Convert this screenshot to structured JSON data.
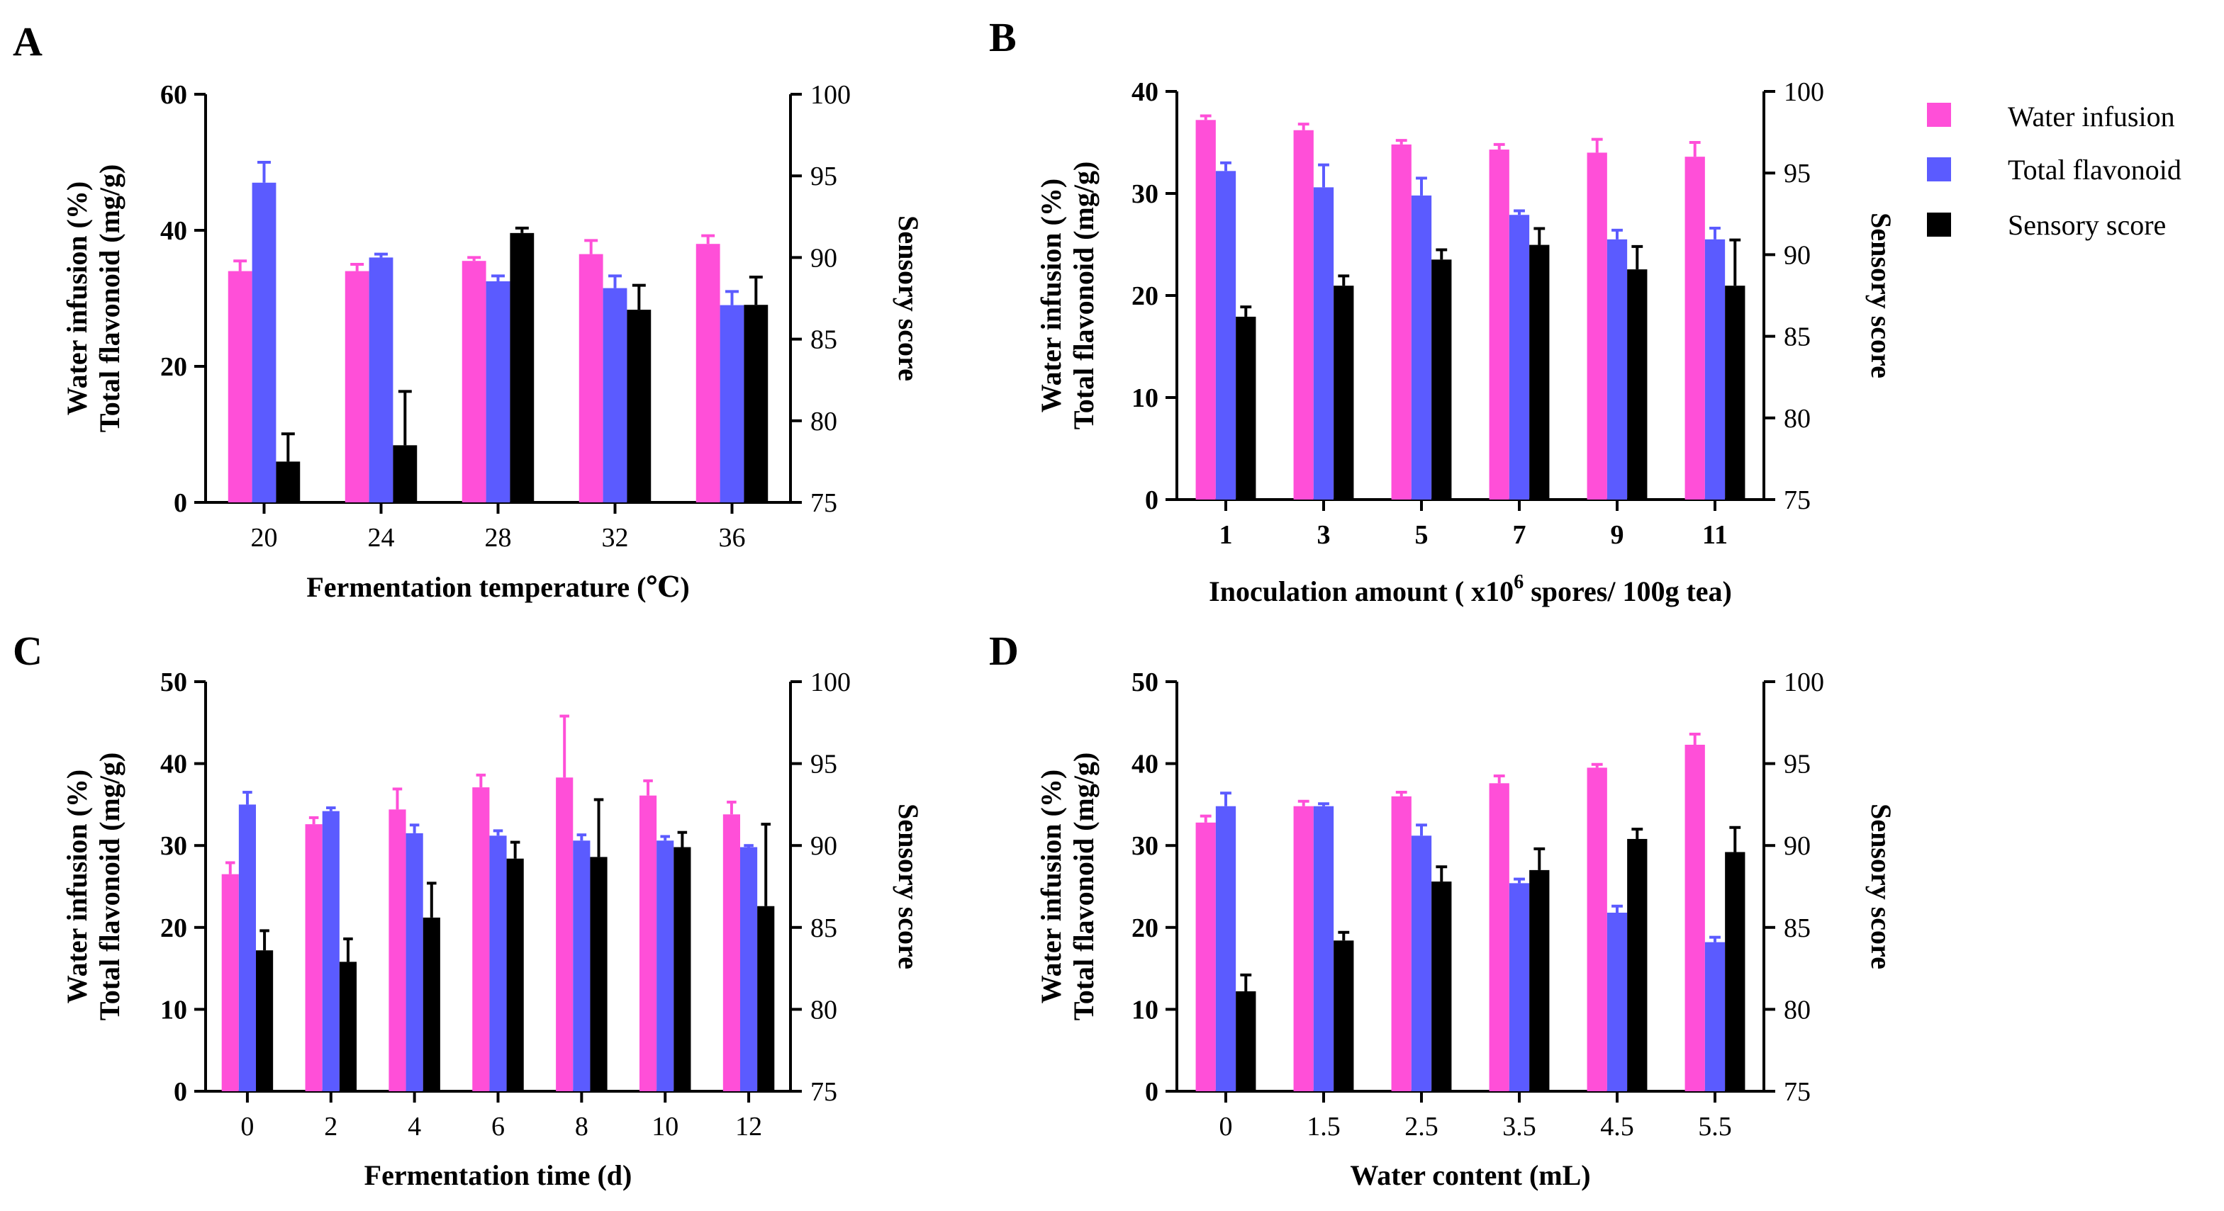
{
  "colors": {
    "water_infusion": "#ff4fd8",
    "total_flavonoid": "#5b5bff",
    "sensory_score": "#000000"
  },
  "legend": {
    "items": [
      {
        "label": "Water infusion",
        "color_key": "water_infusion"
      },
      {
        "label": "Total flavonoid",
        "color_key": "total_flavonoid"
      },
      {
        "label": "Sensory score",
        "color_key": "sensory_score"
      }
    ]
  },
  "chart_data": [
    {
      "panel": "A",
      "type": "bar",
      "xlabel": "Fermentation temperature (℃)",
      "xlabel_sup": "",
      "xlabel_after": "",
      "ylabel_left_1": "Water infusion (%)",
      "ylabel_left_2": "Total flavonoid (mg/g)",
      "ylabel_right": "Sensory score",
      "ylim_left": [
        0,
        60
      ],
      "yticks_left": [
        0,
        20,
        40,
        60
      ],
      "ylim_right": [
        75,
        100
      ],
      "yticks_right": [
        75,
        80,
        85,
        90,
        95,
        100
      ],
      "categories": [
        "20",
        "24",
        "28",
        "32",
        "36"
      ],
      "series": [
        {
          "name": "Water infusion",
          "axis": "left",
          "values": [
            34,
            34,
            35.5,
            36.5,
            38
          ],
          "errors": [
            1.5,
            1,
            0.5,
            2,
            1.2
          ]
        },
        {
          "name": "Total flavonoid",
          "axis": "left",
          "values": [
            47,
            36,
            32.5,
            31.5,
            29
          ],
          "errors": [
            3,
            0.5,
            0.8,
            1.8,
            2
          ]
        },
        {
          "name": "Sensory score",
          "axis": "right",
          "values": [
            77.5,
            78.5,
            91.5,
            86.8,
            87.1
          ],
          "errors": [
            1.7,
            3.3,
            0.3,
            1.5,
            1.7
          ]
        }
      ]
    },
    {
      "panel": "B",
      "type": "bar",
      "xlabel": "Inoculation amount (  x10",
      "xlabel_sup": "6",
      "xlabel_after": " spores/ 100g tea)",
      "ylabel_left_1": "Water infusion (%)",
      "ylabel_left_2": "Total flavonoid (mg/g)",
      "ylabel_right": "Sensory score",
      "ylim_left": [
        0,
        40
      ],
      "yticks_left": [
        0,
        10,
        20,
        30,
        40
      ],
      "ylim_right": [
        75,
        100
      ],
      "yticks_right": [
        75,
        80,
        85,
        90,
        95,
        100
      ],
      "categories": [
        "1",
        "3",
        "5",
        "7",
        "9",
        "11"
      ],
      "series": [
        {
          "name": "Water infusion",
          "axis": "left",
          "values": [
            37.2,
            36.2,
            34.8,
            34.3,
            34,
            33.6
          ],
          "errors": [
            0.4,
            0.6,
            0.4,
            0.5,
            1.3,
            1.4
          ]
        },
        {
          "name": "Total flavonoid",
          "axis": "left",
          "values": [
            32.2,
            30.6,
            29.8,
            27.9,
            25.5,
            25.5
          ],
          "errors": [
            0.8,
            2.2,
            1.7,
            0.4,
            0.9,
            1.1
          ]
        },
        {
          "name": "Sensory score",
          "axis": "right",
          "values": [
            86.2,
            88.1,
            89.7,
            90.6,
            89.1,
            88.1
          ],
          "errors": [
            0.6,
            0.6,
            0.6,
            1.0,
            1.4,
            2.8
          ]
        }
      ]
    },
    {
      "panel": "C",
      "type": "bar",
      "xlabel": "Fermentation time (d)",
      "xlabel_sup": "",
      "xlabel_after": "",
      "ylabel_left_1": "Water infusion (%)",
      "ylabel_left_2": "Total flavonoid (mg/g)",
      "ylabel_right": "Sensory score",
      "ylim_left": [
        0,
        50
      ],
      "yticks_left": [
        0,
        10,
        20,
        30,
        40,
        50
      ],
      "ylim_right": [
        75,
        100
      ],
      "yticks_right": [
        75,
        80,
        85,
        90,
        95,
        100
      ],
      "categories": [
        "0",
        "2",
        "4",
        "6",
        "8",
        "10",
        "12"
      ],
      "series": [
        {
          "name": "Water infusion",
          "axis": "left",
          "values": [
            26.5,
            32.6,
            34.4,
            37.1,
            38.3,
            36.1,
            33.8
          ],
          "errors": [
            1.4,
            0.8,
            2.5,
            1.5,
            7.5,
            1.8,
            1.5
          ]
        },
        {
          "name": "Total flavonoid",
          "axis": "left",
          "values": [
            35,
            34.2,
            31.5,
            31.2,
            30.6,
            30.6,
            29.8
          ],
          "errors": [
            1.5,
            0.4,
            1.0,
            0.6,
            0.7,
            0.5,
            0.2
          ]
        },
        {
          "name": "Sensory score",
          "axis": "right",
          "values": [
            83.6,
            82.9,
            85.6,
            89.2,
            89.3,
            89.9,
            86.3
          ],
          "errors": [
            1.2,
            1.4,
            2.1,
            1.0,
            3.5,
            0.9,
            5.0
          ]
        }
      ]
    },
    {
      "panel": "D",
      "type": "bar",
      "xlabel": "Water content (mL)",
      "xlabel_sup": "",
      "xlabel_after": "",
      "ylabel_left_1": "Water infusion (%)",
      "ylabel_left_2": "Total flavonoid (mg/g)",
      "ylabel_right": "Sensory score",
      "ylim_left": [
        0,
        50
      ],
      "yticks_left": [
        0,
        10,
        20,
        30,
        40,
        50
      ],
      "ylim_right": [
        75,
        100
      ],
      "yticks_right": [
        75,
        80,
        85,
        90,
        95,
        100
      ],
      "categories": [
        "0",
        "1.5",
        "2.5",
        "3.5",
        "4.5",
        "5.5"
      ],
      "series": [
        {
          "name": "Water infusion",
          "axis": "left",
          "values": [
            32.8,
            34.8,
            36,
            37.6,
            39.5,
            42.3
          ],
          "errors": [
            0.8,
            0.6,
            0.5,
            0.9,
            0.4,
            1.3
          ]
        },
        {
          "name": "Total flavonoid",
          "axis": "left",
          "values": [
            34.8,
            34.8,
            31.2,
            25.4,
            21.8,
            18.2
          ],
          "errors": [
            1.6,
            0.3,
            1.3,
            0.5,
            0.8,
            0.6
          ]
        },
        {
          "name": "Sensory score",
          "axis": "right",
          "values": [
            81.1,
            84.2,
            87.8,
            88.5,
            90.4,
            89.6
          ],
          "errors": [
            1.0,
            0.5,
            0.9,
            1.3,
            0.6,
            1.5
          ]
        }
      ]
    }
  ]
}
